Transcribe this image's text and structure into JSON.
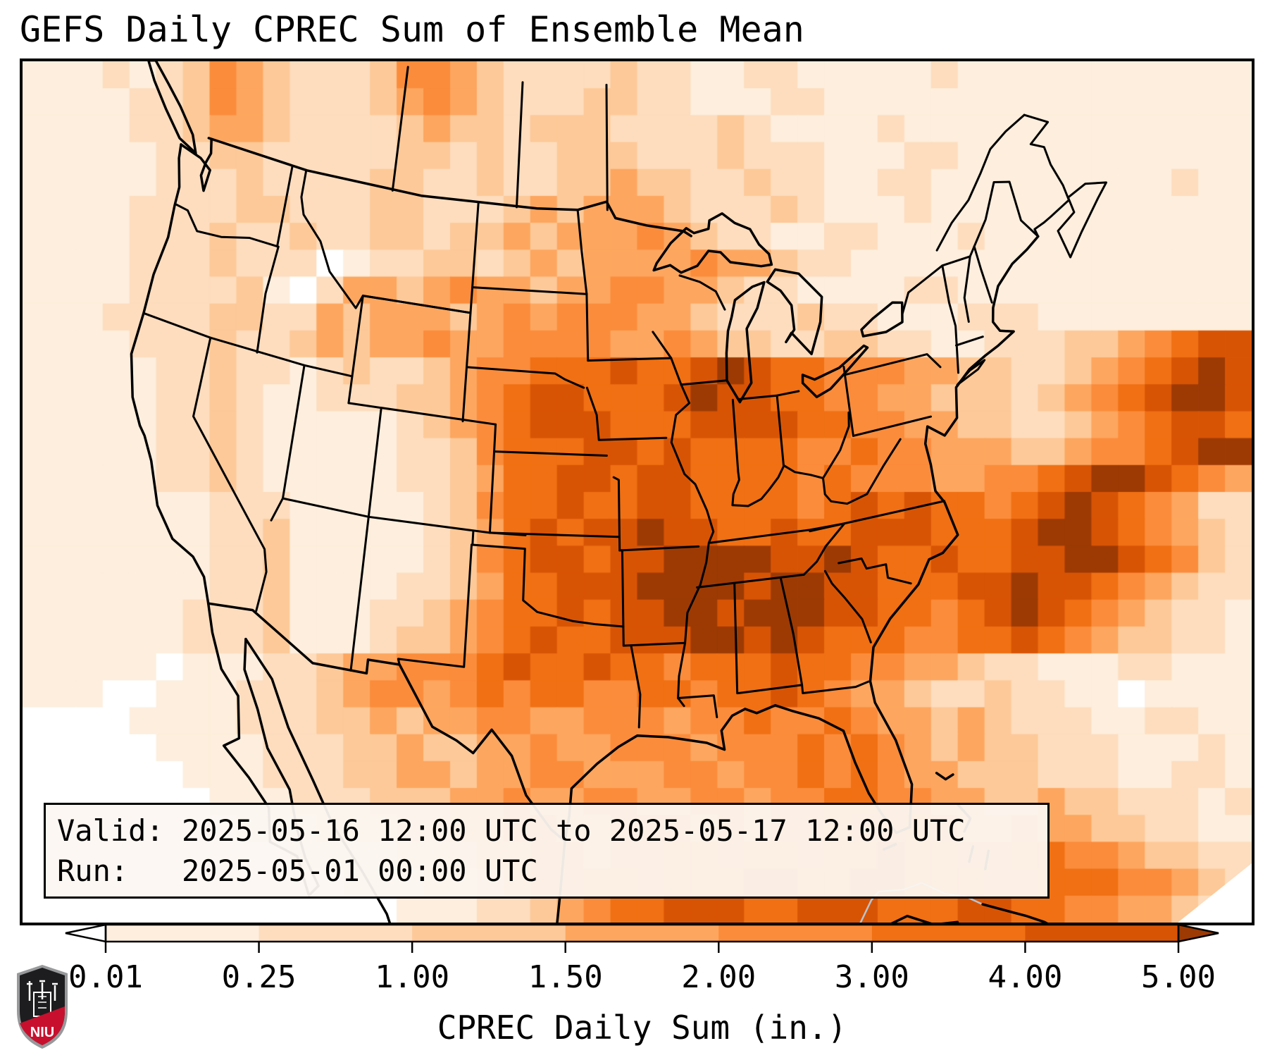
{
  "title": "GEFS Daily CPREC Sum of Ensemble Mean",
  "info_box": {
    "line1": "Valid: 2025-05-16 12:00 UTC to 2025-05-17 12:00 UTC",
    "line2": "Run:   2025-05-01 00:00 UTC"
  },
  "colorbar": {
    "label": "CPREC Daily Sum (in.)",
    "ticks": [
      "0.01",
      "0.25",
      "1.00",
      "1.50",
      "2.00",
      "3.00",
      "4.00",
      "5.00"
    ],
    "under_color": "#ffffff",
    "over_color": "#9d3a04",
    "bin_colors": [
      "#fdeedd",
      "#fdddbe",
      "#fdc998",
      "#fda65f",
      "#fb8c3b",
      "#f07013",
      "#d85405"
    ]
  },
  "logo": {
    "text": "NIU",
    "shield_dark": "#1d1d1f",
    "shield_red": "#c8102e",
    "shield_trim": "#97999b"
  },
  "chart_data": {
    "type": "heatmap",
    "title": "GEFS Daily CPREC Sum of Ensemble Mean",
    "units": "inches",
    "bin_edges": [
      0.01,
      0.25,
      1.0,
      1.5,
      2.0,
      3.0,
      4.0,
      5.0
    ],
    "palette": [
      "#ffffff",
      "#fdeedd",
      "#fdddbe",
      "#fdc998",
      "#fda65f",
      "#fb8c3b",
      "#f07013",
      "#d85405",
      "#9d3a04"
    ],
    "palette_meaning": [
      "<0.01",
      "0.01-0.25",
      "0.25-1.00",
      "1.00-1.50",
      "1.50-2.00",
      "2.00-3.00",
      "3.00-4.00",
      "4.00-5.00",
      ">5.00"
    ],
    "grid_cols": 46,
    "grid_rows": 32,
    "grid_rle": [
      "1,3 2,1 1,1 2,1 3,1 5,1 4,1 3,1 2,3 3,1 5,2 4,1 3,1 2,4 3,1 2,2 1,2 2,2 1,5 2,1 1,11",
      "1,4 2,2 3,1 5,1 4,1 3,1 2,3 3,1 4,1 5,1 4,1 3,1 2,3 3,2 2,2 1,3 2,2 1,16",
      "1,4 2,2 3,1 4,2 3,1 2,4 3,1 4,1 3,2 2,1 3,3 2,4 3,1 2,1 1,4 2,1 1,13",
      "1,5 2,2 3,2 2,5 3,2 2,1 3,1 2,2 3,3 2,3 3,1 2,3 1,3 2,2 1,11",
      "1,5 2,3 3,1 2,4 3,2 2,2 3,1 2,2 3,2 4,1 3,2 2,2 3,1 2,2 1,2 2,2 1,9 2,1 1,2",
      "1,4 2,4 3,2 2,3 3,2 2,3 3,1 4,1 3,1 4,3 3,1 2,3 3,1 2,1 1,3 2,1 1,12",
      "1,4 2,3 3,1 2,2 3,1 2,2 3,2 2,1 3,2 4,1 3,1 4,3 5,1 4,1 3,1 2,2 1,2 2,2 1,3 2,1 1,10",
      "1,4 2,3 3,1 2,3 0,1 1,1 2,2 3,2 2,1 3,1 4,1 3,1 4,4 5,1 4,2 3,1 2,2 1,15",
      "1,4 2,4 3,1 1,1 0,1 2,1 4,2 3,1 4,1 5,1 4,2 3,1 4,2 5,2 4,2 3,1 2,2 1,4 2,2 1,11",
      "1,3 2,4 3,2 2,2 4,1 3,1 4,3 3,1 4,1 5,1 4,1 5,3 4,2 3,1 2,3 3,1 2,2 1,3 2,3 1,8",
      "1,4 2,3 3,1 2,2 3,1 4,1 3,1 4,2 5,1 4,2 5,4 4,2 5,1 4,1 3,2 2,2 3,2 2,2 1,2 2,3 3,2 4,1 5,1 6,1 7,2",
      "1,5 2,2 3,1 2,2 1,1 2,1 3,1 2,2 3,1 4,1 5,2 6,3 7,1 6,2 7,1 8,1 7,1 6,2 5,3 4,2 3,2 2,2 3,1 4,1 5,1 6,1 7,1 8,1 7,1",
      "1,5 2,2 3,1 2,1 1,2 2,3 3,2 4,1 5,1 6,1 7,2 6,3 7,1 8,1 7,2 6,2 5,2 4,2 3,3 2,1 3,1 4,1 5,1 6,1 7,1 8,2 7,1",
      "1,5 2,2 3,1 2,1 1,5 2,1 3,1 4,1 5,1 6,1 7,3 6,3 7,4 6,2 5,2 4,2 3,2 2,2 3,1 4,1 5,1 6,1 7,2 6,1",
      "1,5 2,2 3,1 2,1 1,5 2,2 3,1 5,1 6,3 7,2 6,1 7,1 6,4 5,2 6,1 5,2 4,3 3,2 4,1 5,2 6,1 7,1 8,2",
      "1,5 2,2 3,1 2,1 1,5 2,2 3,1 4,1 6,2 7,2 6,1 7,2 6,4 5,1 6,1 5,3 4,2 5,2 6,1 7,1 8,2 7,1 6,1 5,1 4,1",
      "1,7 2,3 1,5 2,1 3,1 5,1 6,2 7,1 6,2 7,2 6,4 5,1 6,1 7,1 6,1 7,1 6,2 5,1 6,1 7,1 8,1 7,1 6,1 5,1 4,1 2,2",
      "1,7 2,2 3,1 1,5 2,1 3,1 4,1 6,1 7,1 6,1 7,2 8,1 7,2 6,2 7,1 6,2 7,3 6,3 7,1 8,2 7,1 6,1 5,1 4,1 3,1 2,1",
      "1,7 2,2 3,1 1,5 2,1 3,1 5,1 6,1 7,2 6,1 7,2 8,4 7,2 8,1 7,1 6,2 7,1 6,2 7,2 8,2 7,1 6,1 5,1 3,1 2,1",
      "1,7 2,2 3,1 1,4 2,2 3,1 4,1 6,2 7,3 8,4 7,1 8,2 7,2 6,3 7,2 8,1 7,2 6,1 5,1 4,1 3,1 2,2",
      "1,6 2,3 3,1 1,3 2,2 3,1 4,1 5,1 6,2 7,1 6,1 7,2 8,2 7,1 8,3 7,2 6,2 5,1 6,1 7,1 8,1 7,1 6,1 5,1 4,1 3,1 2,2 1,1",
      "1,6 2,3 3,1 1,3 2,1 3,2 4,1 5,1 6,1 7,1 6,2 7,3 8,2 7,1 8,1 7,1 6,3 5,2 6,2 7,1 6,1 5,1 4,1 3,2 2,2 1,1",
      "1,5 0,1 1,3 2,2 3,1 4,2 5,3 6,1 7,1 6,2 7,1 6,2 5,1 6,3 7,1 6,2 5,2 4,2 3,1 2,2 1,3 2,2 1,3",
      "1,3 0,2 1,3 2,3 3,1 4,1 5,2 4,1 5,1 6,1 5,1 6,2 5,2 6,2 5,1 6,2 7,1 6,1 5,1 4,2 3,1 2,2 3,1 2,2 1,2 0,1 1,4",
      "0,4 1,4 2,3 3,2 4,1 3,1 4,2 5,2 4,2 5,3 4,1 5,2 6,1 5,2 6,1 5,1 4,2 3,1 4,1 3,1 2,3 1,2 2,2 1,2",
      "0,5 1,4 2,3 3,2 4,1 3,2 4,2 5,1 4,2 5,3 4,1 5,3 6,1 5,1 6,1 5,1 4,1 3,1 4,1 3,2 2,3 1,3 2,1 1,1",
      "0,6 1,3 2,3 3,2 4,2 3,1 4,2 5,2 4,3 5,2 4,1 5,2 6,1 5,1 6,1 5,1 4,2 3,3 2,3 1,2 2,2 1,1",
      "0,7 1,3 2,3 3,3 4,2 5,1 4,2 5,2 4,2 5,2 4,1 5,2 6,2 5,2 4,2 3,2 4,1 3,2 2,3 1,1 2,1",
      "0,8 1,3 2,3 3,2 4,2 5,2 4,2 5,3 4,1 5,1 4,1 5,2 6,1 5,2 6,1 5,1 4,2 5,1 4,2 3,2 2,2 1,2",
      "0,10 1,4 2,2 3,1 4,2 5,2 4,1 5,2 6,2 5,1 6,2 5,1 6,2 7,1 6,2 5,2 6,2 5,2 4,1 3,2 2,2",
      "0,12 1,3 2,2 3,1 4,1 5,2 6,2 5,1 6,3 7,2 6,2 7,2 6,3 5,2 6,3 5,2 4,1 3,1 2,1",
      "0,14 1,3 2,2 3,1 4,1 5,1 6,2 7,3 6,2 7,3 6,3 7,2 6,2 5,2 4,2 3,1 2,1 1,1"
    ]
  }
}
